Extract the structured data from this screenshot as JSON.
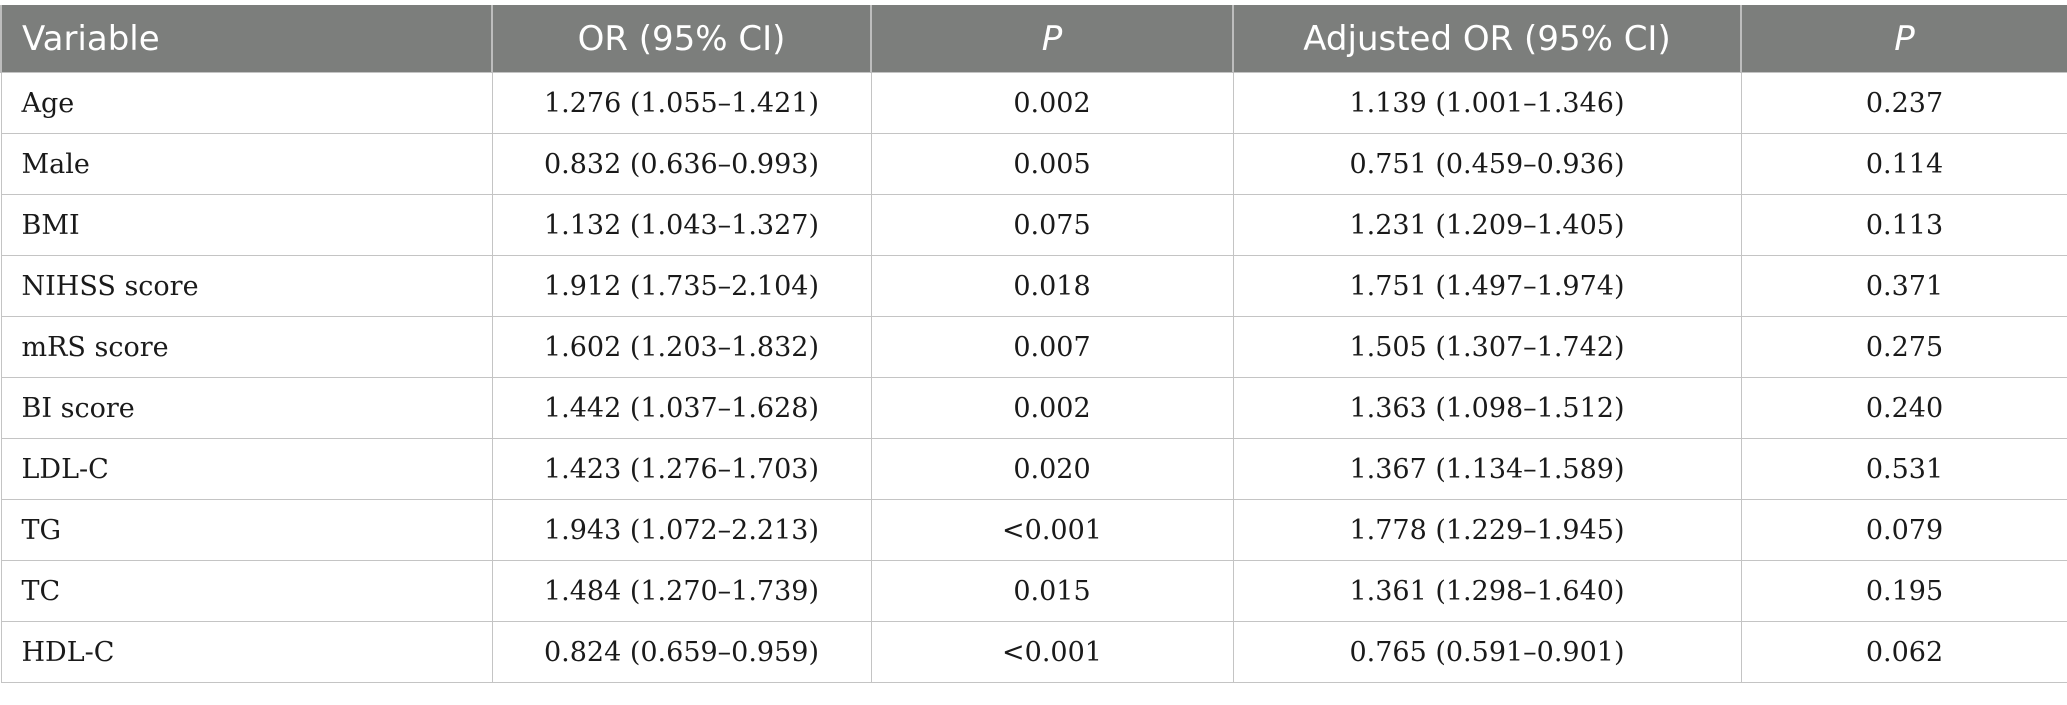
{
  "table": {
    "headers": [
      "Variable",
      "OR (95% CI)",
      "P",
      "Adjusted OR (95% CI)",
      "P"
    ],
    "rows": [
      [
        "Age",
        "1.276 (1.055–1.421)",
        "0.002",
        "1.139 (1.001–1.346)",
        "0.237"
      ],
      [
        "Male",
        "0.832 (0.636–0.993)",
        "0.005",
        "0.751 (0.459–0.936)",
        "0.114"
      ],
      [
        "BMI",
        "1.132 (1.043–1.327)",
        "0.075",
        "1.231 (1.209–1.405)",
        "0.113"
      ],
      [
        "NIHSS score",
        "1.912 (1.735–2.104)",
        "0.018",
        "1.751 (1.497–1.974)",
        "0.371"
      ],
      [
        "mRS score",
        "1.602 (1.203–1.832)",
        "0.007",
        "1.505 (1.307–1.742)",
        "0.275"
      ],
      [
        "BI score",
        "1.442 (1.037–1.628)",
        "0.002",
        "1.363 (1.098–1.512)",
        "0.240"
      ],
      [
        "LDL-C",
        "1.423 (1.276–1.703)",
        "0.020",
        "1.367 (1.134–1.589)",
        "0.531"
      ],
      [
        "TG",
        "1.943 (1.072–2.213)",
        "<0.001",
        "1.778 (1.229–1.945)",
        "0.079"
      ],
      [
        "TC",
        "1.484 (1.270–1.739)",
        "0.015",
        "1.361 (1.298–1.640)",
        "0.195"
      ],
      [
        "HDL-C",
        "0.824 (0.659–0.959)",
        "<0.001",
        "0.765 (0.591–0.901)",
        "0.062"
      ]
    ]
  }
}
